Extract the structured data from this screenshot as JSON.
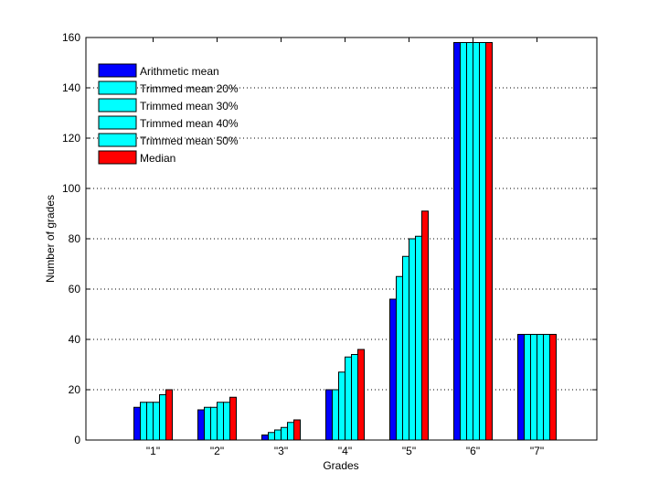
{
  "chart_data": {
    "type": "bar",
    "title": "",
    "xlabel": "Grades",
    "ylabel": "Number of grades",
    "categories": [
      "\"1\"",
      "\"2\"",
      "\"3\"",
      "\"4\"",
      "\"5\"",
      "\"6\"",
      "\"7\""
    ],
    "ylim": [
      0,
      160
    ],
    "yticks": [
      0,
      20,
      40,
      60,
      80,
      100,
      120,
      140,
      160
    ],
    "grid": "horizontal dotted",
    "legend_position": "top-left",
    "series": [
      {
        "name": "Arithmetic mean",
        "color": "#0000ff",
        "values": [
          13,
          12,
          2,
          20,
          56,
          158,
          42
        ]
      },
      {
        "name": "Trimmed mean 20%",
        "color": "#00ffff",
        "values": [
          15,
          13,
          3,
          20,
          65,
          158,
          42
        ]
      },
      {
        "name": "Trimmed mean 30%",
        "color": "#00ffff",
        "values": [
          15,
          13,
          4,
          27,
          73,
          158,
          42
        ]
      },
      {
        "name": "Trimmed mean 40%",
        "color": "#00ffff",
        "values": [
          15,
          15,
          5,
          33,
          80,
          158,
          42
        ]
      },
      {
        "name": "Trimmed mean 50%",
        "color": "#00ffff",
        "values": [
          18,
          15,
          7,
          34,
          81,
          158,
          42
        ]
      },
      {
        "name": "Median",
        "color": "#ff0000",
        "values": [
          20,
          17,
          8,
          36,
          91,
          158,
          42
        ]
      }
    ]
  }
}
